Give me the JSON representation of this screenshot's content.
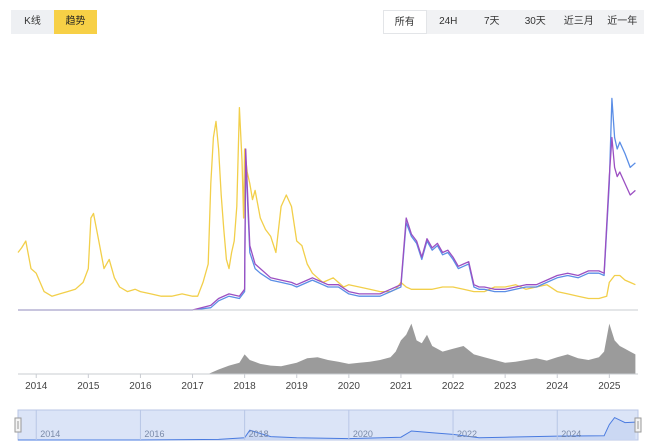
{
  "toolbar": {
    "view_toggle": [
      {
        "label": "K线",
        "active": false
      },
      {
        "label": "趋势",
        "active": true
      }
    ],
    "range_tabs": [
      {
        "label": "所有",
        "active": true
      },
      {
        "label": "24H",
        "active": false
      },
      {
        "label": "7天",
        "active": false
      },
      {
        "label": "30天",
        "active": false
      },
      {
        "label": "近三月",
        "active": false
      },
      {
        "label": "近一年",
        "active": false
      }
    ]
  },
  "colors": {
    "accent": "#f7d046",
    "series_yellow": "#f2cf4a",
    "series_blue": "#5b8ee6",
    "series_purple": "#9b4fc2",
    "volume": "#8a8a8a",
    "navigator_fill": "#c9d6f2",
    "navigator_line": "#4a7be0"
  },
  "navigator": {
    "labels": [
      "2014",
      "2016",
      "2018",
      "2020",
      "2022",
      "2024"
    ]
  },
  "chart_data": {
    "type": "line",
    "xlabel": "",
    "ylabel": "",
    "x_ticks": [
      "2014",
      "2015",
      "2016",
      "2017",
      "2018",
      "2019",
      "2020",
      "2021",
      "2022",
      "2023",
      "2024",
      "2025"
    ],
    "x_range": [
      2013.65,
      2025.55
    ],
    "y_range": [
      0,
      100
    ],
    "y_axis_labels_shown": false,
    "grid": false,
    "series": [
      {
        "color": "#f2cf4a",
        "x": [
          2013.65,
          2013.72,
          2013.8,
          2013.9,
          2014.0,
          2014.15,
          2014.3,
          2014.45,
          2014.6,
          2014.75,
          2014.9,
          2015.0,
          2015.05,
          2015.1,
          2015.2,
          2015.3,
          2015.4,
          2015.5,
          2015.6,
          2015.75,
          2015.9,
          2016.0,
          2016.2,
          2016.4,
          2016.6,
          2016.8,
          2017.0,
          2017.1,
          2017.2,
          2017.3,
          2017.35,
          2017.4,
          2017.45,
          2017.5,
          2017.55,
          2017.6,
          2017.65,
          2017.7,
          2017.75,
          2017.8,
          2017.85,
          2017.9,
          2017.95,
          2017.98,
          2018.0,
          2018.05,
          2018.1,
          2018.15,
          2018.2,
          2018.3,
          2018.4,
          2018.5,
          2018.6,
          2018.7,
          2018.8,
          2018.9,
          2019.0,
          2019.1,
          2019.2,
          2019.3,
          2019.4,
          2019.5,
          2019.6,
          2019.7,
          2019.8,
          2019.9,
          2020.0,
          2020.2,
          2020.4,
          2020.6,
          2020.8,
          2020.9,
          2021.0,
          2021.1,
          2021.2,
          2021.4,
          2021.6,
          2021.8,
          2022.0,
          2022.2,
          2022.4,
          2022.6,
          2022.8,
          2023.0,
          2023.2,
          2023.4,
          2023.6,
          2023.8,
          2024.0,
          2024.2,
          2024.4,
          2024.6,
          2024.8,
          2024.95,
          2025.0,
          2025.1,
          2025.2,
          2025.3,
          2025.4,
          2025.5
        ],
        "y": [
          25,
          27,
          30,
          18,
          16,
          8,
          6,
          7,
          8,
          9,
          12,
          18,
          40,
          42,
          30,
          18,
          22,
          14,
          10,
          8,
          9,
          8,
          7,
          6,
          6,
          7,
          6,
          6,
          12,
          20,
          55,
          75,
          82,
          70,
          50,
          35,
          22,
          18,
          25,
          30,
          45,
          88,
          65,
          40,
          70,
          60,
          55,
          48,
          52,
          40,
          35,
          32,
          25,
          45,
          50,
          45,
          30,
          28,
          20,
          16,
          14,
          12,
          13,
          14,
          12,
          10,
          11,
          10,
          9,
          8,
          8,
          9,
          12,
          10,
          9,
          9,
          9,
          10,
          10,
          9,
          8,
          8,
          10,
          10,
          11,
          9,
          10,
          11,
          8,
          7,
          6,
          5,
          5,
          6,
          12,
          15,
          15,
          13,
          12,
          11
        ]
      },
      {
        "color": "#5b8ee6",
        "x": [
          2013.65,
          2014.0,
          2015.0,
          2016.0,
          2017.0,
          2017.35,
          2017.5,
          2017.7,
          2017.9,
          2018.0,
          2018.02,
          2018.1,
          2018.2,
          2018.3,
          2018.5,
          2018.7,
          2018.9,
          2019.0,
          2019.2,
          2019.3,
          2019.4,
          2019.5,
          2019.6,
          2019.8,
          2020.0,
          2020.2,
          2020.4,
          2020.6,
          2020.8,
          2020.9,
          2021.0,
          2021.1,
          2021.2,
          2021.3,
          2021.4,
          2021.5,
          2021.6,
          2021.7,
          2021.8,
          2021.9,
          2022.0,
          2022.1,
          2022.2,
          2022.3,
          2022.4,
          2022.5,
          2022.6,
          2022.8,
          2023.0,
          2023.2,
          2023.4,
          2023.6,
          2023.8,
          2024.0,
          2024.2,
          2024.4,
          2024.6,
          2024.8,
          2024.9,
          2025.0,
          2025.05,
          2025.1,
          2025.15,
          2025.2,
          2025.3,
          2025.4,
          2025.5
        ],
        "y": [
          0,
          0,
          0,
          0,
          0,
          1,
          4,
          6,
          5,
          8,
          66,
          25,
          18,
          16,
          13,
          12,
          11,
          10,
          12,
          13,
          12,
          11,
          10,
          10,
          7,
          6,
          6,
          6,
          8,
          9,
          10,
          38,
          32,
          29,
          22,
          30,
          26,
          28,
          24,
          25,
          22,
          18,
          19,
          20,
          10,
          9,
          9,
          8,
          8,
          9,
          10,
          10,
          12,
          14,
          15,
          14,
          16,
          16,
          15,
          55,
          92,
          75,
          70,
          73,
          68,
          62,
          64
        ]
      },
      {
        "color": "#9b4fc2",
        "x": [
          2013.65,
          2014.0,
          2015.0,
          2016.0,
          2017.0,
          2017.35,
          2017.5,
          2017.7,
          2017.9,
          2018.0,
          2018.02,
          2018.1,
          2018.2,
          2018.3,
          2018.5,
          2018.7,
          2018.9,
          2019.0,
          2019.2,
          2019.3,
          2019.4,
          2019.5,
          2019.6,
          2019.8,
          2020.0,
          2020.2,
          2020.4,
          2020.6,
          2020.8,
          2020.9,
          2021.0,
          2021.1,
          2021.2,
          2021.3,
          2021.4,
          2021.5,
          2021.6,
          2021.7,
          2021.8,
          2021.9,
          2022.0,
          2022.1,
          2022.2,
          2022.3,
          2022.4,
          2022.5,
          2022.6,
          2022.8,
          2023.0,
          2023.2,
          2023.4,
          2023.6,
          2023.8,
          2024.0,
          2024.2,
          2024.4,
          2024.6,
          2024.8,
          2024.9,
          2025.0,
          2025.05,
          2025.1,
          2025.15,
          2025.2,
          2025.3,
          2025.4,
          2025.5
        ],
        "y": [
          0,
          0,
          0,
          0,
          0,
          2,
          5,
          7,
          6,
          9,
          70,
          28,
          20,
          18,
          14,
          13,
          12,
          11,
          13,
          14,
          13,
          12,
          11,
          11,
          8,
          7,
          7,
          7,
          9,
          10,
          11,
          40,
          33,
          30,
          23,
          31,
          27,
          29,
          25,
          26,
          23,
          19,
          20,
          21,
          11,
          10,
          10,
          9,
          9,
          10,
          11,
          11,
          13,
          15,
          16,
          15,
          17,
          17,
          16,
          58,
          75,
          62,
          58,
          60,
          55,
          50,
          52
        ]
      }
    ],
    "volume": {
      "type": "area",
      "color": "#8a8a8a",
      "x": [
        2013.65,
        2017.3,
        2017.5,
        2017.7,
        2017.9,
        2018.0,
        2018.1,
        2018.3,
        2018.5,
        2018.7,
        2019.0,
        2019.2,
        2019.4,
        2019.6,
        2019.8,
        2020.0,
        2020.2,
        2020.4,
        2020.6,
        2020.8,
        2020.9,
        2021.0,
        2021.1,
        2021.2,
        2021.3,
        2021.4,
        2021.5,
        2021.6,
        2021.8,
        2022.0,
        2022.2,
        2022.4,
        2022.6,
        2022.8,
        2023.0,
        2023.2,
        2023.4,
        2023.6,
        2023.8,
        2024.0,
        2024.2,
        2024.4,
        2024.6,
        2024.8,
        2024.9,
        2025.0,
        2025.1,
        2025.2,
        2025.3,
        2025.4,
        2025.5
      ],
      "y": [
        0,
        0,
        8,
        15,
        20,
        35,
        25,
        18,
        15,
        14,
        20,
        28,
        30,
        25,
        22,
        18,
        20,
        22,
        25,
        30,
        40,
        60,
        70,
        90,
        60,
        55,
        70,
        50,
        40,
        45,
        50,
        35,
        30,
        25,
        20,
        22,
        25,
        28,
        24,
        30,
        35,
        28,
        25,
        30,
        40,
        90,
        60,
        50,
        45,
        40,
        35
      ]
    },
    "navigator": {
      "type": "area",
      "x": [
        2013.65,
        2016.0,
        2017.5,
        2018.0,
        2018.1,
        2018.5,
        2019.0,
        2020.0,
        2021.0,
        2021.2,
        2021.6,
        2022.0,
        2022.5,
        2023.0,
        2024.0,
        2024.9,
        2025.0,
        2025.1,
        2025.3,
        2025.5
      ],
      "y": [
        0,
        0,
        2,
        8,
        35,
        12,
        8,
        5,
        10,
        32,
        26,
        20,
        8,
        10,
        14,
        15,
        55,
        80,
        62,
        64
      ]
    }
  }
}
